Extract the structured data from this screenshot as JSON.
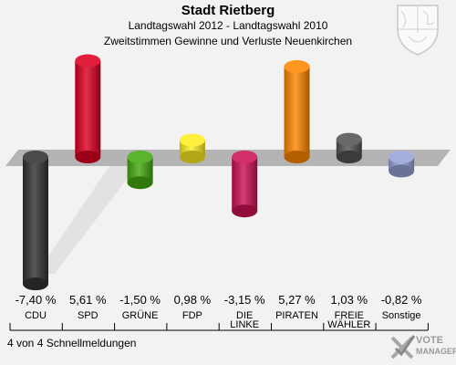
{
  "header": {
    "title": "Stadt Rietberg",
    "subtitle": "Landtagswahl 2012 - Landtagswahl 2010",
    "caption": "Zweitstimmen Gewinne und Verluste Neuenkirchen"
  },
  "footer": {
    "text": "4 von 4 Schnellmeldungen"
  },
  "logo": {
    "line1": "VOTE",
    "line2": "MANAGER"
  },
  "crest": {
    "icon": "nrw-crest-icon"
  },
  "chart_data": {
    "type": "bar",
    "title": "Zweitstimmen Gewinne und Verluste Neuenkirchen",
    "categories": [
      "CDU",
      "SPD",
      "GRÜNE",
      "FDP",
      "DIE LINKE",
      "PIRATEN",
      "FREIE WÄHLER",
      "Sonstige"
    ],
    "values": [
      -7.4,
      5.61,
      -1.5,
      0.98,
      -3.15,
      5.27,
      1.03,
      -0.82
    ],
    "value_labels": [
      "-7,40 %",
      "5,61 %",
      "-1,50 %",
      "0,98 %",
      "-3,15 %",
      "5,27 %",
      "1,03 %",
      "-0,82 %"
    ],
    "colors": [
      "#333333",
      "#dd0022",
      "#44aa11",
      "#ffee22",
      "#cc1155",
      "#ff8800",
      "#555555",
      "#98a4d8"
    ],
    "ylim": [
      -8,
      7
    ],
    "grid": false,
    "legend": "none"
  }
}
